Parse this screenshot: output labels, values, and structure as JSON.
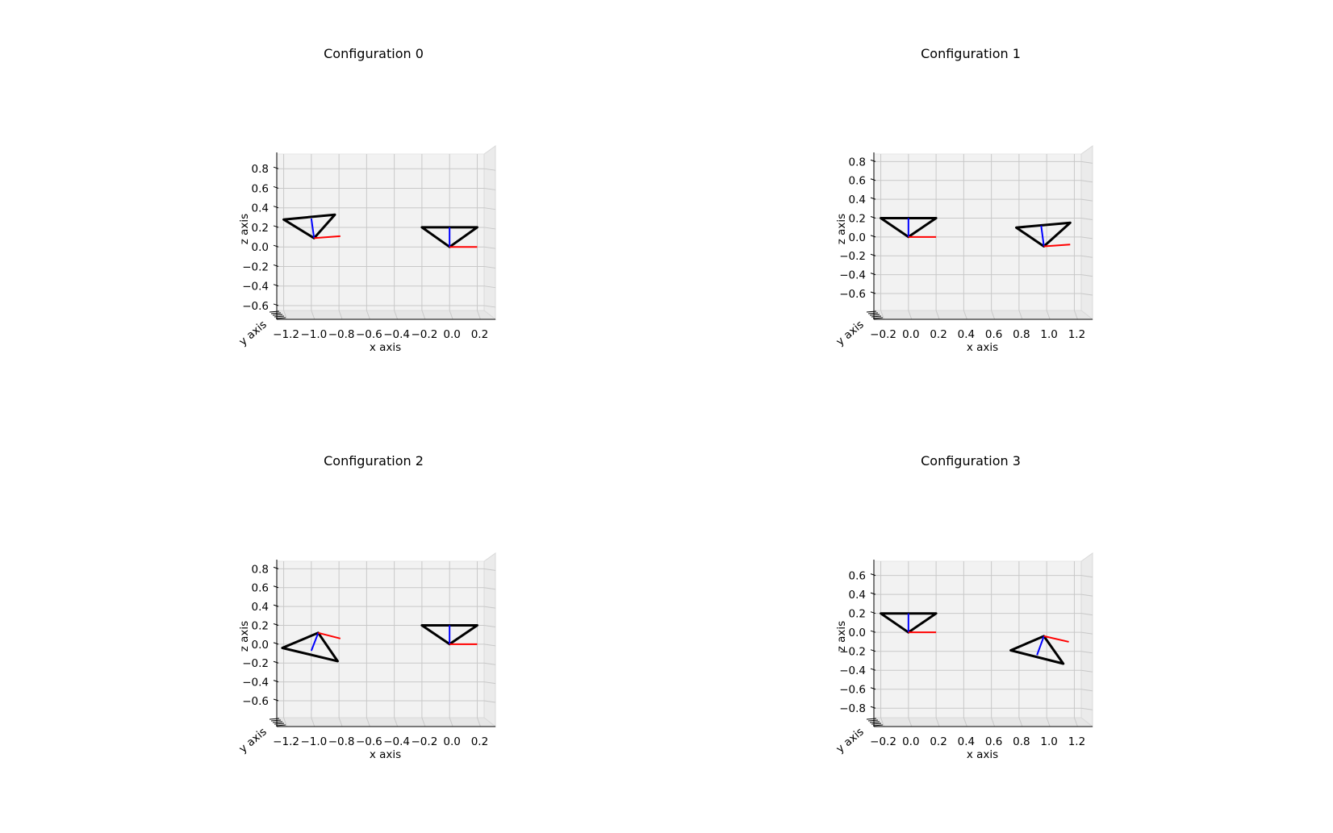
{
  "chart_data": [
    {
      "type": "3d-line",
      "title": "Configuration 0",
      "xlabel": "x axis",
      "ylabel": "y axis",
      "zlabel": "z axis",
      "xlim": [
        -1.25,
        0.25
      ],
      "zlim": [
        -0.65,
        0.95
      ],
      "xticks": [
        "−1.2",
        "−1.0",
        "−0.8",
        "−0.6",
        "−0.4",
        "−0.2",
        "0.0",
        "0.2"
      ],
      "zticks": [
        "0.8",
        "0.6",
        "0.4",
        "0.2",
        "0.0",
        "−0.2",
        "−0.4",
        "−0.6"
      ],
      "grid": true,
      "triangles": [
        {
          "points": [
            [
              -1.2,
              0.28
            ],
            [
              -0.83,
              0.33
            ],
            [
              -0.98,
              0.09
            ]
          ],
          "color": "#000000"
        },
        {
          "points": [
            [
              -0.2,
              0.2
            ],
            [
              0.2,
              0.2
            ],
            [
              0.0,
              0.0
            ]
          ],
          "color": "#000000"
        }
      ],
      "segments": [
        {
          "from": [
            -0.98,
            0.09
          ],
          "to": [
            -1.0,
            0.29
          ],
          "color": "#0000ff"
        },
        {
          "from": [
            -0.98,
            0.09
          ],
          "to": [
            -0.79,
            0.11
          ],
          "color": "#ff0000"
        },
        {
          "from": [
            0.0,
            0.0
          ],
          "to": [
            0.0,
            0.2
          ],
          "color": "#0000ff"
        },
        {
          "from": [
            0.0,
            0.0
          ],
          "to": [
            0.2,
            0.0
          ],
          "color": "#ff0000"
        }
      ]
    },
    {
      "type": "3d-line",
      "title": "Configuration 1",
      "xlabel": "x axis",
      "ylabel": "y axis",
      "zlabel": "z axis",
      "xlim": [
        -0.25,
        1.25
      ],
      "zlim": [
        -0.78,
        0.88
      ],
      "xticks": [
        "−0.2",
        "0.0",
        "0.2",
        "0.4",
        "0.6",
        "0.8",
        "1.0",
        "1.2"
      ],
      "zticks": [
        "0.8",
        "0.6",
        "0.4",
        "0.2",
        "0.0",
        "−0.2",
        "−0.4",
        "−0.6"
      ],
      "grid": true,
      "triangles": [
        {
          "points": [
            [
              -0.2,
              0.2
            ],
            [
              0.2,
              0.2
            ],
            [
              0.0,
              0.0
            ]
          ],
          "color": "#000000"
        },
        {
          "points": [
            [
              0.78,
              0.1
            ],
            [
              1.17,
              0.15
            ],
            [
              0.98,
              -0.1
            ]
          ],
          "color": "#000000"
        }
      ],
      "segments": [
        {
          "from": [
            0.0,
            0.0
          ],
          "to": [
            0.0,
            0.2
          ],
          "color": "#0000ff"
        },
        {
          "from": [
            0.0,
            0.0
          ],
          "to": [
            0.2,
            0.0
          ],
          "color": "#ff0000"
        },
        {
          "from": [
            0.98,
            -0.1
          ],
          "to": [
            0.96,
            0.12
          ],
          "color": "#0000ff"
        },
        {
          "from": [
            0.98,
            -0.1
          ],
          "to": [
            1.17,
            -0.08
          ],
          "color": "#ff0000"
        }
      ]
    },
    {
      "type": "3d-line",
      "title": "Configuration 2",
      "xlabel": "x axis",
      "ylabel": "y axis",
      "zlabel": "z axis",
      "xlim": [
        -1.25,
        0.25
      ],
      "zlim": [
        -0.78,
        0.88
      ],
      "xticks": [
        "−1.2",
        "−1.0",
        "−0.8",
        "−0.6",
        "−0.4",
        "−0.2",
        "0.0",
        "0.2"
      ],
      "zticks": [
        "0.8",
        "0.6",
        "0.4",
        "0.2",
        "0.0",
        "−0.2",
        "−0.4",
        "−0.6"
      ],
      "grid": true,
      "triangles": [
        {
          "points": [
            [
              -1.21,
              -0.04
            ],
            [
              -0.95,
              0.12
            ],
            [
              -0.81,
              -0.18
            ]
          ],
          "color": "#000000"
        },
        {
          "points": [
            [
              -0.2,
              0.2
            ],
            [
              0.2,
              0.2
            ],
            [
              0.0,
              0.0
            ]
          ],
          "color": "#000000"
        }
      ],
      "segments": [
        {
          "from": [
            -0.95,
            0.12
          ],
          "to": [
            -1.0,
            -0.07
          ],
          "color": "#0000ff"
        },
        {
          "from": [
            -0.95,
            0.12
          ],
          "to": [
            -0.79,
            0.06
          ],
          "color": "#ff0000"
        },
        {
          "from": [
            0.0,
            0.0
          ],
          "to": [
            0.0,
            0.2
          ],
          "color": "#0000ff"
        },
        {
          "from": [
            0.0,
            0.0
          ],
          "to": [
            0.2,
            0.0
          ],
          "color": "#ff0000"
        }
      ]
    },
    {
      "type": "3d-line",
      "title": "Configuration 3",
      "xlabel": "x axis",
      "ylabel": "y axis",
      "zlabel": "z axis",
      "xlim": [
        -0.25,
        1.25
      ],
      "zlim": [
        -0.9,
        0.75
      ],
      "xticks": [
        "−0.2",
        "0.0",
        "0.2",
        "0.4",
        "0.6",
        "0.8",
        "1.0",
        "1.2"
      ],
      "zticks": [
        "0.6",
        "0.4",
        "0.2",
        "0.0",
        "−0.2",
        "−0.4",
        "−0.6",
        "−0.8"
      ],
      "grid": true,
      "triangles": [
        {
          "points": [
            [
              -0.2,
              0.2
            ],
            [
              0.2,
              0.2
            ],
            [
              0.0,
              0.0
            ]
          ],
          "color": "#000000"
        },
        {
          "points": [
            [
              0.74,
              -0.19
            ],
            [
              0.98,
              -0.04
            ],
            [
              1.12,
              -0.33
            ]
          ],
          "color": "#000000"
        }
      ],
      "segments": [
        {
          "from": [
            0.0,
            0.0
          ],
          "to": [
            0.0,
            0.2
          ],
          "color": "#0000ff"
        },
        {
          "from": [
            0.0,
            0.0
          ],
          "to": [
            0.2,
            0.0
          ],
          "color": "#ff0000"
        },
        {
          "from": [
            0.98,
            -0.04
          ],
          "to": [
            0.93,
            -0.24
          ],
          "color": "#0000ff"
        },
        {
          "from": [
            0.98,
            -0.04
          ],
          "to": [
            1.16,
            -0.1
          ],
          "color": "#ff0000"
        }
      ]
    }
  ]
}
